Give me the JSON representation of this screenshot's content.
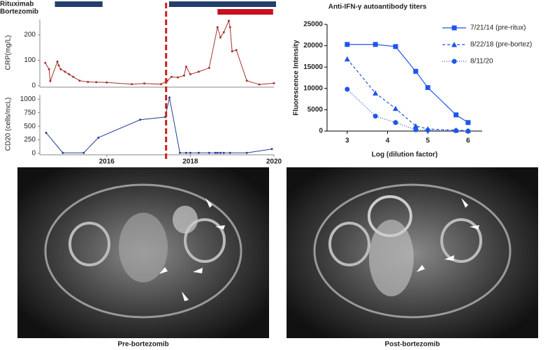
{
  "chart_data": [
    {
      "type": "line",
      "ylabel": "CRP(mg/L)",
      "xlim": [
        2014.4,
        2020
      ],
      "ylim": [
        0,
        260
      ],
      "yticks": [
        0,
        100,
        200
      ],
      "color": "#a8302b",
      "vline": 2017.42,
      "vline_color": "#cc1f1f",
      "treatments": [
        {
          "name": "Rituximab",
          "color": "#243f6b",
          "periods": [
            [
              2014.76,
              2015.9
            ],
            [
              2017.49,
              2020.05
            ]
          ]
        },
        {
          "name": "Bortezomib",
          "color": "#c8101e",
          "periods": [
            [
              2018.65,
              2019.98
            ]
          ]
        }
      ],
      "x": [
        2014.53,
        2014.62,
        2014.65,
        2014.82,
        2014.85,
        2014.9,
        2015.0,
        2015.1,
        2015.2,
        2015.35,
        2015.55,
        2015.75,
        2016.0,
        2016.6,
        2016.9,
        2017.3,
        2017.45,
        2017.55,
        2017.7,
        2017.85,
        2017.9,
        2018.0,
        2018.2,
        2018.45,
        2018.65,
        2018.72,
        2018.8,
        2018.92,
        2018.95,
        2019.0,
        2019.1,
        2019.35,
        2019.65,
        2020.0
      ],
      "values": [
        90,
        65,
        18,
        95,
        80,
        65,
        55,
        45,
        35,
        20,
        15,
        14,
        13,
        6,
        9,
        6,
        20,
        35,
        33,
        40,
        75,
        45,
        55,
        70,
        230,
        190,
        210,
        255,
        230,
        135,
        140,
        20,
        5,
        10
      ]
    },
    {
      "type": "line",
      "ylabel": "CD20 (cells/mcL)",
      "xlim": [
        2014.4,
        2020
      ],
      "ylim": [
        0,
        1080
      ],
      "yticks": [
        0,
        250,
        500,
        750,
        1000
      ],
      "xticks": [
        2016,
        2018,
        2020
      ],
      "color": "#24408e",
      "x": [
        2014.55,
        2014.95,
        2015.45,
        2015.8,
        2016.8,
        2017.4,
        2017.5,
        2017.75,
        2017.9,
        2018.0,
        2018.2,
        2018.45,
        2018.6,
        2018.65,
        2018.72,
        2018.8,
        2018.95,
        2019.35,
        2019.95
      ],
      "values": [
        380,
        10,
        10,
        290,
        620,
        670,
        1030,
        10,
        10,
        10,
        10,
        10,
        10,
        10,
        10,
        10,
        10,
        10,
        80
      ]
    },
    {
      "type": "dose-response",
      "title": "Anti-IFN-γ autoantibody titers",
      "xlabel": "Log (dilution factor)",
      "ylabel": "Fluorescence Intensity",
      "xlim": [
        2.5,
        6.35
      ],
      "ylim": [
        0,
        25000
      ],
      "xticks": [
        3,
        4,
        5,
        6
      ],
      "yticks": [
        0,
        5000,
        10000,
        15000,
        20000,
        25000
      ],
      "color": "#1f55e8",
      "x": [
        3,
        3.7,
        4.2,
        4.7,
        5,
        5.7,
        6
      ],
      "series": [
        {
          "name": "7/21/14 (pre-ritux)",
          "marker": "square",
          "dash": "solid",
          "values": [
            20300,
            20300,
            19800,
            14000,
            10200,
            3800,
            2000
          ]
        },
        {
          "name": "8/22/18 (pre-bortez)",
          "marker": "triangle",
          "dash": "dashed",
          "values": [
            16900,
            8900,
            5300,
            1200,
            500,
            200,
            100
          ]
        },
        {
          "name": "8/11/20",
          "marker": "circle",
          "dash": "dotted",
          "values": [
            9800,
            3500,
            2000,
            300,
            200,
            100,
            0
          ]
        }
      ]
    }
  ],
  "images": [
    {
      "caption": "Pre-bortezomib"
    },
    {
      "caption": "Post-bortezomib"
    }
  ]
}
